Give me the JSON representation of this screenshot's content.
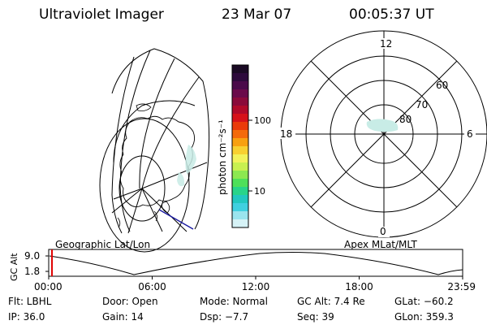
{
  "header": {
    "instrument": "Ultraviolet Imager",
    "date": "23 Mar 07",
    "time": "00:05:37 UT"
  },
  "colorbar": {
    "unit_label": "photon cm⁻²s⁻¹",
    "tick_100": "100",
    "tick_10": "10",
    "colors": [
      "#1a0a24",
      "#2d0a3c",
      "#4a0a4a",
      "#6a0a4a",
      "#8a0a3a",
      "#b00a2a",
      "#d6121a",
      "#ea3a0a",
      "#f46a0a",
      "#f8a010",
      "#f8d030",
      "#f2f25a",
      "#c8f050",
      "#8ce850",
      "#4ee05a",
      "#28d48a",
      "#22c8c0",
      "#40d0e0",
      "#9ae4ee",
      "#d6f2f6"
    ]
  },
  "polar": {
    "label_12": "12",
    "label_18": "18",
    "label_6": "6",
    "label_0": "0",
    "lat_60": "60",
    "lat_70": "70",
    "lat_80": "80"
  },
  "projection_labels": {
    "geographic": "Geographic Lat/Lon",
    "apex": "Apex MLat/MLT"
  },
  "altitude_plot": {
    "ylabel": "GC Alt",
    "ytick_high": "9.0",
    "ytick_low": "1.8",
    "xticks": [
      "00:00",
      "06:00",
      "12:00",
      "18:00",
      "23:59"
    ],
    "current_time_fraction": 0.004
  },
  "status": {
    "filter": "Flt: LBHL",
    "door": "Door: Open",
    "mode": "Mode: Normal",
    "gc_alt": "GC Alt: 7.4 Re",
    "glat": "GLat: −60.2",
    "ip": "IP: 36.0",
    "gain": "Gain: 14",
    "dsp": "Dsp:    −7.7",
    "seq": "Seq: 39",
    "glon": "GLon: 359.3"
  }
}
